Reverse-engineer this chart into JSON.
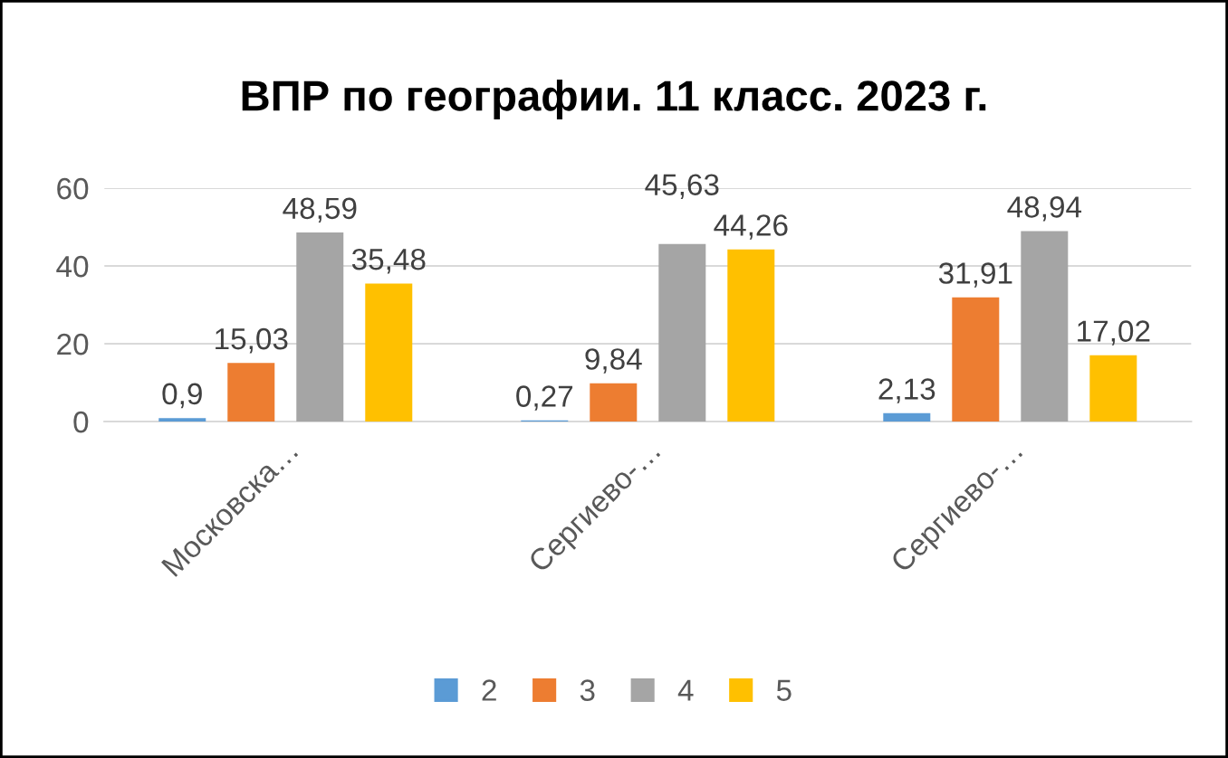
{
  "chart_data": {
    "type": "bar",
    "title": "ВПР по географии. 11 класс. 2023 г.",
    "categories": [
      "Московска…",
      "Сергиево-…",
      "Сергиево-…"
    ],
    "series": [
      {
        "name": "2",
        "color": "#5b9bd5",
        "values": [
          0.9,
          0.27,
          2.13
        ],
        "value_labels": [
          "0,9",
          "0,27",
          "2,13"
        ]
      },
      {
        "name": "3",
        "color": "#ed7d31",
        "values": [
          15.03,
          9.84,
          31.91
        ],
        "value_labels": [
          "15,03",
          "9,84",
          "31,91"
        ]
      },
      {
        "name": "4",
        "color": "#a5a5a5",
        "values": [
          48.59,
          45.63,
          48.94
        ],
        "value_labels": [
          "48,59",
          "45,63",
          "48,94"
        ]
      },
      {
        "name": "5",
        "color": "#ffc000",
        "values": [
          35.48,
          44.26,
          17.02
        ],
        "value_labels": [
          "35,48",
          "44,26",
          "17,02"
        ]
      }
    ],
    "ylim": [
      0,
      60
    ],
    "yticks": [
      0,
      20,
      40,
      60
    ],
    "grid": "y",
    "legend": "bottom"
  }
}
